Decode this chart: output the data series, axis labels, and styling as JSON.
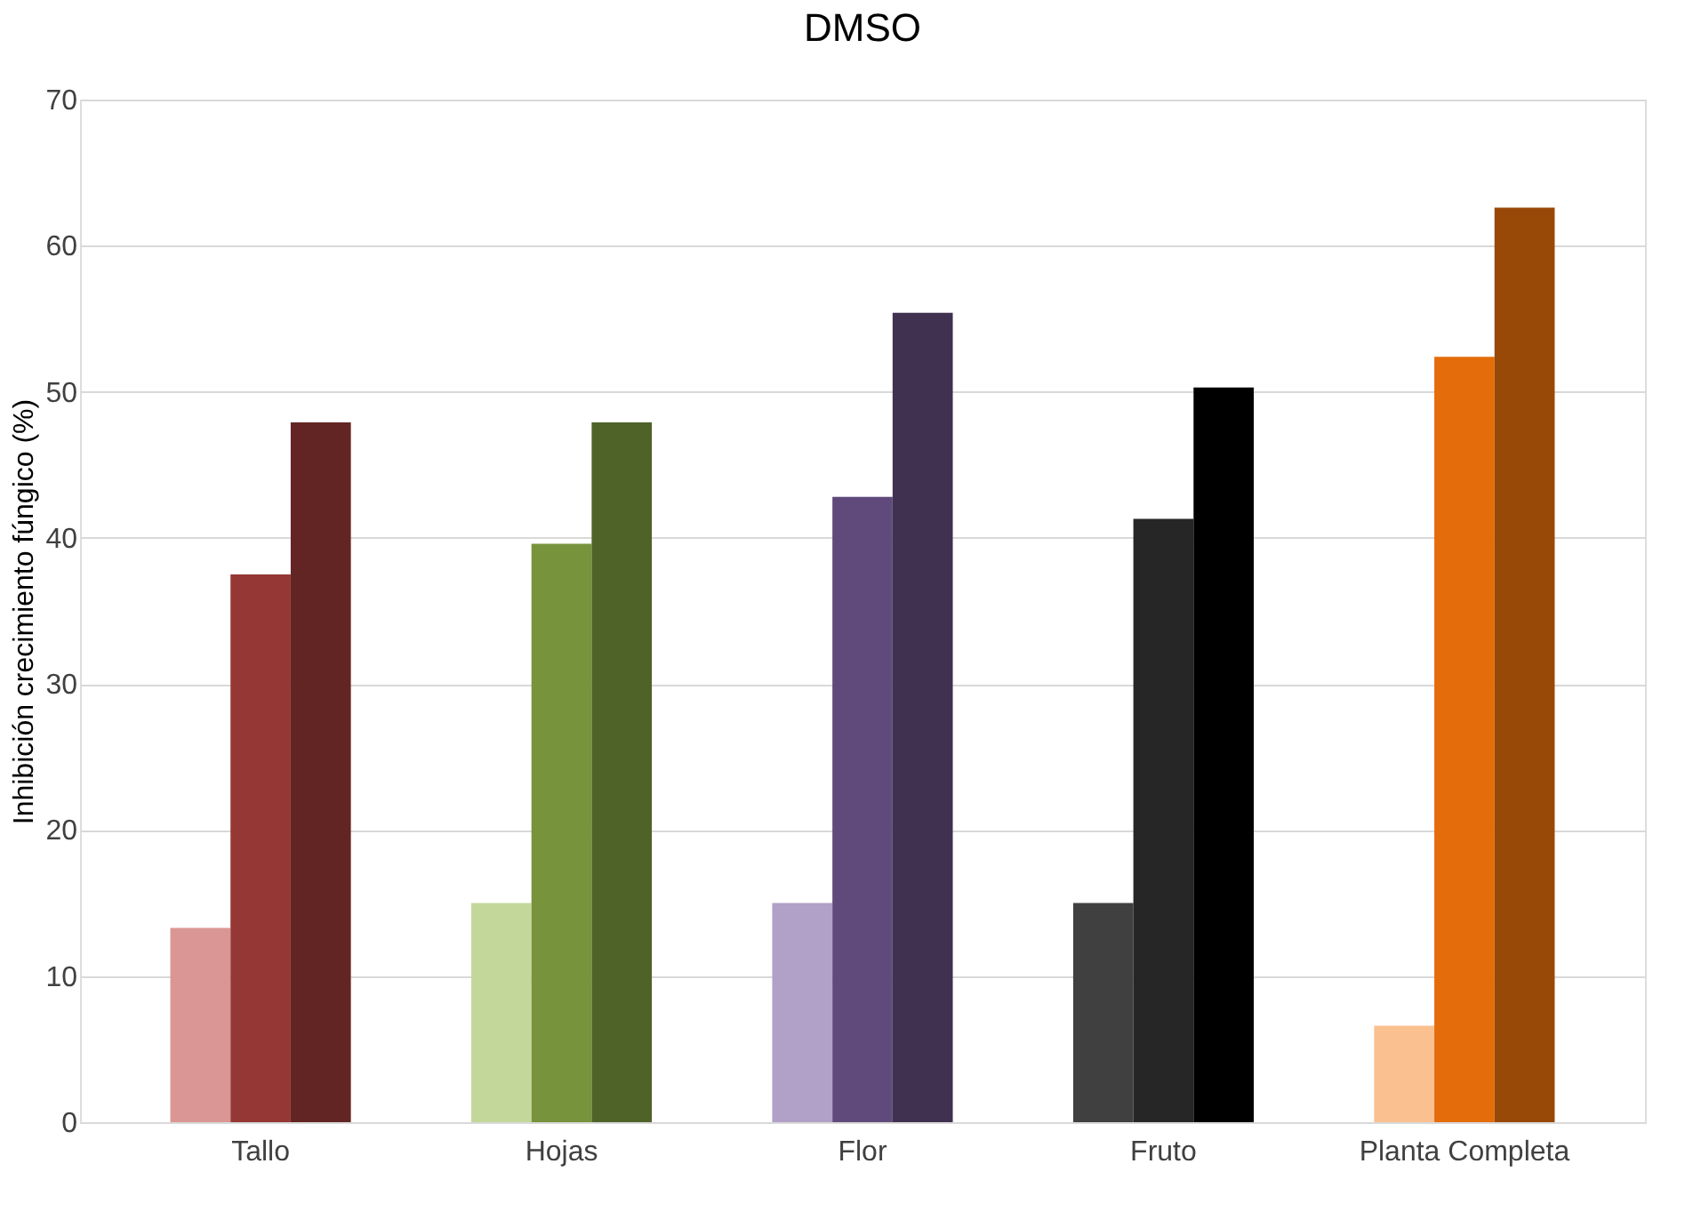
{
  "chart_data": {
    "type": "bar",
    "title": "DMSO",
    "ylabel": "Inhibición crecimiento fúngico (%)",
    "categories": [
      "Tallo",
      "Hojas",
      "Flor",
      "Fruto",
      "Planta Completa"
    ],
    "series": [
      {
        "values": [
          13.3,
          15.0,
          15.0,
          15.0,
          6.6
        ],
        "colors": [
          "#da9694",
          "#c4d79b",
          "#b1a0c7",
          "#404040",
          "#fac090"
        ]
      },
      {
        "values": [
          37.5,
          39.6,
          42.8,
          41.3,
          52.4
        ],
        "colors": [
          "#953735",
          "#77933c",
          "#604a7b",
          "#262626",
          "#e46c0a"
        ]
      },
      {
        "values": [
          47.9,
          47.9,
          55.4,
          50.3,
          62.6
        ],
        "colors": [
          "#632523",
          "#4f6228",
          "#403151",
          "#000000",
          "#984807"
        ]
      }
    ],
    "ylim": [
      0,
      70
    ],
    "yticks": [
      0,
      10,
      20,
      30,
      40,
      50,
      60,
      70
    ],
    "grid": "y"
  }
}
